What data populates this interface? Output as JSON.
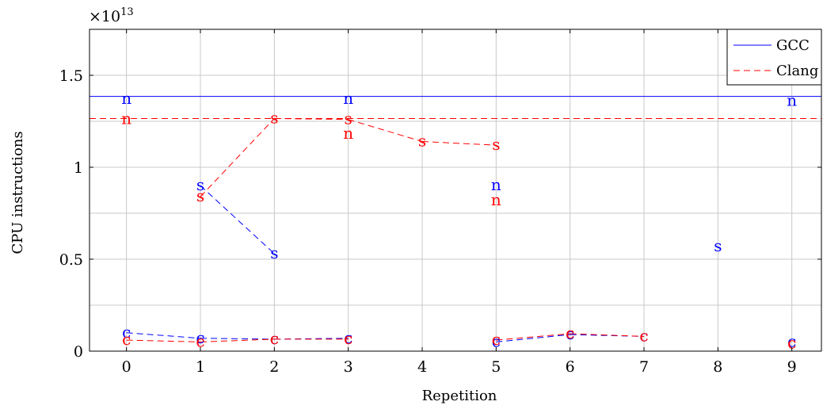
{
  "chart_data": {
    "type": "line",
    "xlabel": "Repetition",
    "ylabel": "CPU instructions",
    "y_scale_label": "×10",
    "y_scale_exponent": "13",
    "xlim": [
      -0.5,
      9.4
    ],
    "ylim": [
      0,
      1.75
    ],
    "x_ticks": [
      0,
      1,
      2,
      3,
      4,
      5,
      6,
      7,
      8,
      9
    ],
    "y_ticks": [
      0,
      0.5,
      1,
      1.5
    ],
    "y_tick_labels": [
      "0",
      "0.5",
      "1",
      "1.5"
    ],
    "grid": true,
    "legend_position": "top-right",
    "legend": [
      {
        "name": "GCC",
        "color": "#0000ff",
        "dash": "solid"
      },
      {
        "name": "Clang",
        "color": "#ff0000",
        "dash": "dashed"
      }
    ],
    "reference_lines": [
      {
        "series": "GCC",
        "y": 1.385,
        "color": "#0000ff",
        "dash": "solid"
      },
      {
        "series": "Clang",
        "y": 1.265,
        "color": "#ff0000",
        "dash": "dashed"
      }
    ],
    "series": [
      {
        "compiler": "GCC",
        "marker": "s",
        "color": "#0000ff",
        "points": [
          [
            1,
            0.9
          ],
          [
            2,
            0.53
          ],
          [
            8,
            0.57
          ]
        ]
      },
      {
        "compiler": "Clang",
        "marker": "s",
        "color": "#ff0000",
        "points": [
          [
            1,
            0.84
          ],
          [
            2,
            1.265
          ],
          [
            3,
            1.26
          ],
          [
            4,
            1.14
          ],
          [
            5,
            1.12
          ]
        ]
      },
      {
        "compiler": "GCC",
        "marker": "n",
        "color": "#0000ff",
        "points": [
          [
            0,
            1.37
          ],
          [
            3,
            1.37
          ],
          [
            5,
            0.9
          ],
          [
            9,
            1.36
          ]
        ]
      },
      {
        "compiler": "Clang",
        "marker": "n",
        "color": "#ff0000",
        "points": [
          [
            0,
            1.26
          ],
          [
            3,
            1.18
          ],
          [
            5,
            0.82
          ]
        ]
      },
      {
        "compiler": "GCC",
        "marker": "c",
        "color": "#0000ff",
        "points": [
          [
            0,
            0.1
          ],
          [
            1,
            0.07
          ],
          [
            2,
            0.065
          ],
          [
            3,
            0.07
          ],
          [
            5,
            0.05
          ],
          [
            6,
            0.09
          ],
          [
            7,
            0.08
          ],
          [
            9,
            0.05
          ]
        ]
      },
      {
        "compiler": "Clang",
        "marker": "c",
        "color": "#ff0000",
        "points": [
          [
            0,
            0.06
          ],
          [
            1,
            0.05
          ],
          [
            2,
            0.065
          ],
          [
            3,
            0.065
          ],
          [
            5,
            0.06
          ],
          [
            6,
            0.095
          ],
          [
            7,
            0.08
          ],
          [
            9,
            0.04
          ]
        ]
      }
    ]
  }
}
